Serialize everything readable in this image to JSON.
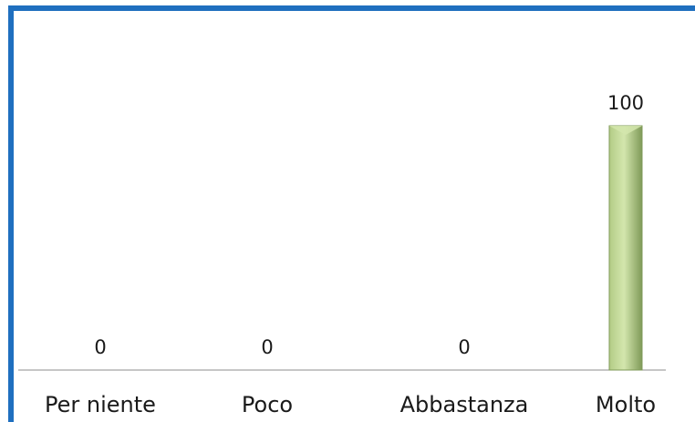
{
  "colors": {
    "frame": "#1f6fbf",
    "axis": "#8c8c8c",
    "bar_light": "#d3e6ad",
    "bar_mid": "#b3cc86",
    "bar_dark": "#7f9a58",
    "text": "#1a1a1a"
  },
  "chart_data": {
    "type": "bar",
    "categories": [
      "Per niente",
      "Poco",
      "Abbastanza",
      "Molto"
    ],
    "values": [
      0,
      0,
      0,
      100
    ],
    "data_labels": [
      "0",
      "0",
      "0",
      "100"
    ],
    "title": "",
    "xlabel": "",
    "ylabel": "",
    "ylim": [
      0,
      100
    ],
    "grid": false,
    "legend": "none"
  }
}
